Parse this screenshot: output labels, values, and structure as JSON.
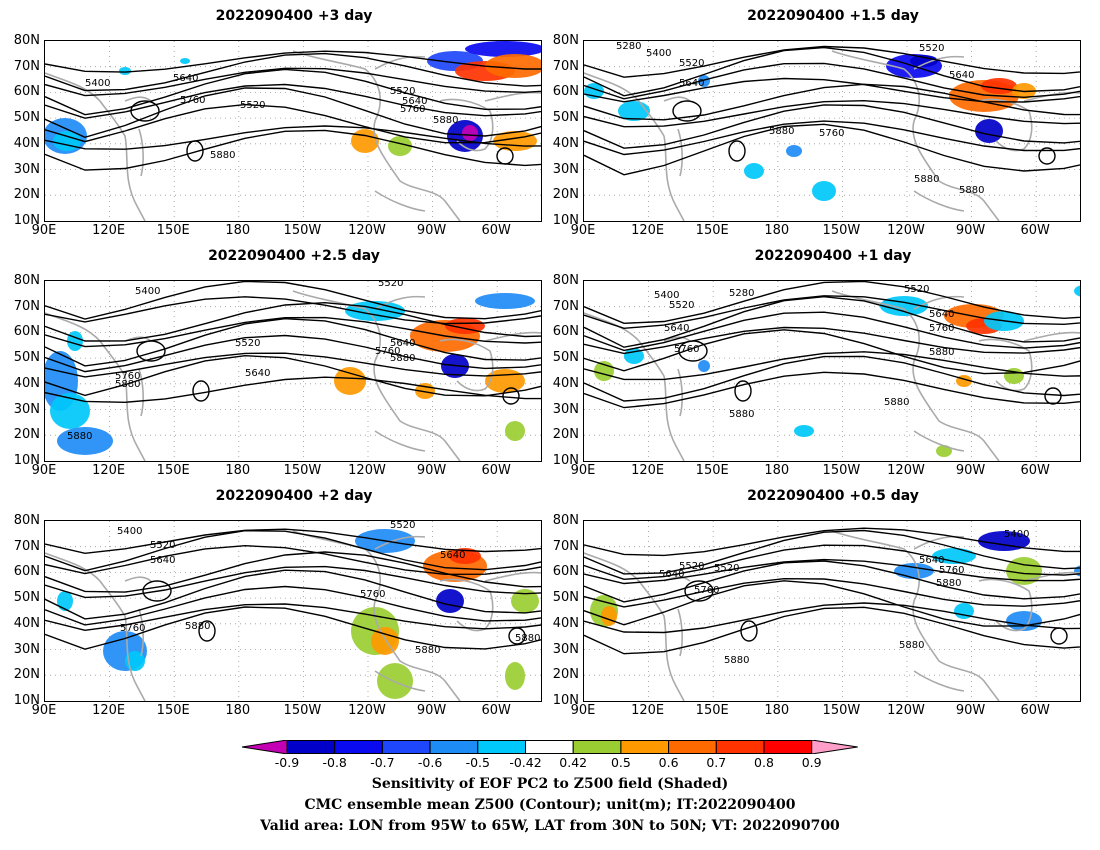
{
  "panels": [
    {
      "title": "2022090400 +3 day",
      "contours": [
        {
          "label": "5400"
        },
        {
          "label": "5640"
        },
        {
          "label": "5760"
        },
        {
          "label": "5520"
        },
        {
          "label": "5520"
        },
        {
          "label": "5640"
        },
        {
          "label": "5760"
        },
        {
          "label": "5880"
        },
        {
          "label": "5880"
        }
      ]
    },
    {
      "title": "2022090400 +1.5 day",
      "contours": [
        {
          "label": "5280"
        },
        {
          "label": "5400"
        },
        {
          "label": "5520"
        },
        {
          "label": "5640"
        },
        {
          "label": "5520"
        },
        {
          "label": "5640"
        },
        {
          "label": "5880"
        },
        {
          "label": "5760"
        },
        {
          "label": "5880"
        },
        {
          "label": "5880"
        }
      ]
    },
    {
      "title": "2022090400 +2.5 day",
      "contours": [
        {
          "label": "5400"
        },
        {
          "label": "5520"
        },
        {
          "label": "5520"
        },
        {
          "label": "5640"
        },
        {
          "label": "5760"
        },
        {
          "label": "5880"
        },
        {
          "label": "5640"
        },
        {
          "label": "5760"
        },
        {
          "label": "5880"
        },
        {
          "label": "5880"
        }
      ]
    },
    {
      "title": "2022090400 +1 day",
      "contours": [
        {
          "label": "5400"
        },
        {
          "label": "5520"
        },
        {
          "label": "5280"
        },
        {
          "label": "5520"
        },
        {
          "label": "5640"
        },
        {
          "label": "5640"
        },
        {
          "label": "5760"
        },
        {
          "label": "5880"
        },
        {
          "label": "5760"
        },
        {
          "label": "5880"
        },
        {
          "label": "5880"
        }
      ]
    },
    {
      "title": "2022090400 +2 day",
      "contours": [
        {
          "label": "5400"
        },
        {
          "label": "5520"
        },
        {
          "label": "5640"
        },
        {
          "label": "5520"
        },
        {
          "label": "5640"
        },
        {
          "label": "5760"
        },
        {
          "label": "5880"
        },
        {
          "label": "5760"
        },
        {
          "label": "5880"
        },
        {
          "label": "5880"
        }
      ]
    },
    {
      "title": "2022090400 +0.5 day",
      "contours": [
        {
          "label": "5400"
        },
        {
          "label": "5520"
        },
        {
          "label": "5640"
        },
        {
          "label": "5760"
        },
        {
          "label": "5520"
        },
        {
          "label": "5640"
        },
        {
          "label": "5760"
        },
        {
          "label": "5880"
        },
        {
          "label": "5880"
        },
        {
          "label": "5880"
        }
      ]
    }
  ],
  "lat_labels": [
    "80N",
    "70N",
    "60N",
    "50N",
    "40N",
    "30N",
    "20N",
    "10N"
  ],
  "lon_labels": [
    "90E",
    "120E",
    "150E",
    "180",
    "150W",
    "120W",
    "90W",
    "60W"
  ],
  "colorbar": {
    "ticks": [
      "-0.9",
      "-0.8",
      "-0.7",
      "-0.6",
      "-0.5",
      "-0.42",
      "0.42",
      "0.5",
      "0.6",
      "0.7",
      "0.8",
      "0.9"
    ],
    "colors": [
      "#c400b4",
      "#0000c8",
      "#0a0af0",
      "#1e46fa",
      "#1e8cf5",
      "#00c8fa",
      "#ffffff",
      "#9acd32",
      "#ff9900",
      "#ff6a00",
      "#ff3300",
      "#ff0000",
      "#ff9ec8"
    ]
  },
  "captions": [
    "Sensitivity of EOF PC2 to Z500 field (Shaded)",
    "CMC ensemble mean Z500 (Contour); unit(m); IT:2022090400",
    "Valid area: LON from 95W to 65W, LAT from 30N to 50N; VT: 2022090700"
  ]
}
